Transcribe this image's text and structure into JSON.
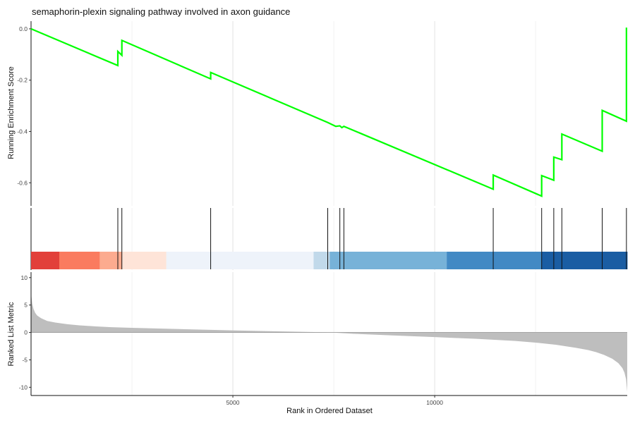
{
  "chart_data": {
    "type": "line",
    "title": "semaphorin-plexin signaling pathway involved in axon guidance",
    "panels": {
      "enrichment": {
        "ylabel": "Running Enrichment Score",
        "yticks": [
          0.0,
          -0.2,
          -0.4,
          -0.6
        ],
        "ylim": [
          -0.69,
          0.03
        ],
        "line_color": "#00ff00",
        "series": {
          "x": [
            0,
            2150,
            2150,
            2250,
            2250,
            4450,
            4450,
            7350,
            7550,
            7650,
            7700,
            7750,
            11450,
            11450,
            12650,
            12650,
            12950,
            12950,
            13150,
            13150,
            14150,
            14150,
            14750,
            14750
          ],
          "y": [
            0.0,
            -0.143,
            -0.088,
            -0.103,
            -0.045,
            -0.195,
            -0.17,
            -0.365,
            -0.38,
            -0.378,
            -0.385,
            -0.38,
            -0.625,
            -0.57,
            -0.652,
            -0.572,
            -0.59,
            -0.5,
            -0.51,
            -0.41,
            -0.477,
            -0.318,
            -0.36,
            0.005
          ]
        }
      },
      "hits": {
        "positions": [
          2150,
          2250,
          4450,
          7350,
          7650,
          7750,
          11450,
          12650,
          12950,
          13150,
          14150,
          14750
        ]
      },
      "ranked_metric": {
        "ylabel": "Ranked List Metric",
        "yticks": [
          10,
          5,
          0,
          -5,
          -10
        ],
        "ylim": [
          -11.5,
          11
        ],
        "fill_color": "#bebebe",
        "profile": {
          "x": [
            0,
            10,
            30,
            60,
            100,
            150,
            250,
            400,
            600,
            900,
            1200,
            1600,
            2000,
            2500,
            3000,
            4000,
            5000,
            6000,
            7000,
            7400,
            8000,
            9000,
            10000,
            11000,
            12000,
            12500,
            13000,
            13500,
            13800,
            14000,
            14200,
            14400,
            14550,
            14650,
            14700,
            14740,
            14770
          ],
          "y": [
            8.5,
            6.5,
            5.2,
            4.3,
            3.6,
            3.1,
            2.6,
            2.1,
            1.8,
            1.5,
            1.3,
            1.1,
            0.95,
            0.85,
            0.75,
            0.55,
            0.38,
            0.22,
            0.07,
            0.0,
            -0.25,
            -0.55,
            -0.85,
            -1.15,
            -1.55,
            -1.85,
            -2.25,
            -2.8,
            -3.2,
            -3.6,
            -4.1,
            -4.8,
            -5.6,
            -6.5,
            -7.3,
            -8.5,
            -10.8
          ]
        }
      },
      "color_bar": {
        "segments": [
          {
            "from": 0,
            "to": 700,
            "color": "#e2403a"
          },
          {
            "from": 700,
            "to": 1700,
            "color": "#fa7b5f"
          },
          {
            "from": 1700,
            "to": 2250,
            "color": "#fcab8f"
          },
          {
            "from": 2250,
            "to": 3350,
            "color": "#fee4d8"
          },
          {
            "from": 3350,
            "to": 7000,
            "color": "#eef3fa"
          },
          {
            "from": 7000,
            "to": 7400,
            "color": "#c1d9ea"
          },
          {
            "from": 7400,
            "to": 10300,
            "color": "#77b2d8"
          },
          {
            "from": 10300,
            "to": 12650,
            "color": "#4289c4"
          },
          {
            "from": 12650,
            "to": 14770,
            "color": "#1a5da3"
          }
        ]
      }
    },
    "xlabel": "Rank in Ordered Dataset",
    "xticks": [
      5000,
      10000
    ],
    "xlim": [
      0,
      14770
    ],
    "grid": "vertical major and minor gridlines"
  }
}
